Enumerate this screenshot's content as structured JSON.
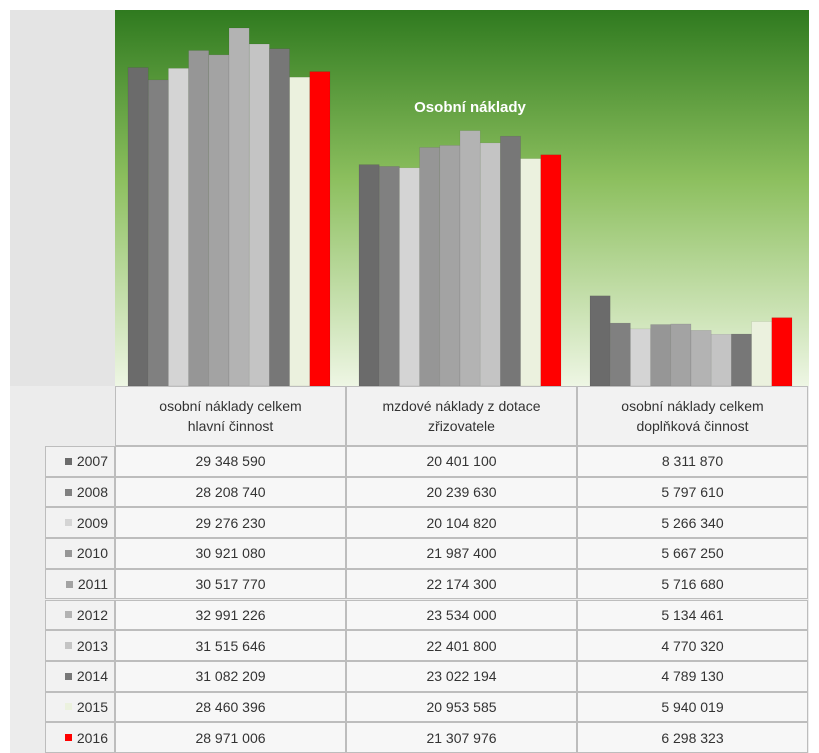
{
  "chart_data": {
    "type": "bar",
    "title": "Osobní náklady",
    "categories": [
      "osobní náklady celkem hlavní činnost",
      "mzdové náklady z dotace zřizovatele",
      "osobní náklady celkem doplňková činnost"
    ],
    "series": [
      {
        "name": "2007",
        "color": "#6b6b6b",
        "values": [
          29348590,
          20401100,
          8311870
        ],
        "value_labels": [
          "29 348 590",
          "20 401 100",
          "8 311 870"
        ]
      },
      {
        "name": "2008",
        "color": "#808080",
        "values": [
          28208740,
          20239630,
          5797610
        ],
        "value_labels": [
          "28 208 740",
          "20 239 630",
          "5 797 610"
        ]
      },
      {
        "name": "2009",
        "color": "#d4d4d4",
        "values": [
          29276230,
          20104820,
          5266340
        ],
        "value_labels": [
          "29 276 230",
          "20 104 820",
          "5 266 340"
        ]
      },
      {
        "name": "2010",
        "color": "#969696",
        "values": [
          30921080,
          21987400,
          5667250
        ],
        "value_labels": [
          "30 921 080",
          "21 987 400",
          "5 667 250"
        ]
      },
      {
        "name": "2011",
        "color": "#a3a3a3",
        "values": [
          30517770,
          22174300,
          5716680
        ],
        "value_labels": [
          "30 517 770",
          "22 174 300",
          "5 716 680"
        ]
      },
      {
        "name": "2012",
        "color": "#b3b3b3",
        "values": [
          32991226,
          23534000,
          5134461
        ],
        "value_labels": [
          "32 991 226",
          "23 534 000",
          "5 134 461"
        ]
      },
      {
        "name": "2013",
        "color": "#c4c4c4",
        "values": [
          31515646,
          22401800,
          4770320
        ],
        "value_labels": [
          "31 515 646",
          "22 401 800",
          "4 770 320"
        ]
      },
      {
        "name": "2014",
        "color": "#777777",
        "values": [
          31082209,
          23022194,
          4789130
        ],
        "value_labels": [
          "31 082 209",
          "23 022 194",
          "4 789 130"
        ]
      },
      {
        "name": "2015",
        "color": "#ebf1de",
        "values": [
          28460396,
          20953585,
          5940019
        ],
        "value_labels": [
          "28 460 396",
          "20 953 585",
          "5 940 019"
        ]
      },
      {
        "name": "2016",
        "color": "#ff0000",
        "values": [
          28971006,
          21307976,
          6298323
        ],
        "value_labels": [
          "28 971 006",
          "21 307 976",
          "6 298 323"
        ]
      }
    ]
  }
}
